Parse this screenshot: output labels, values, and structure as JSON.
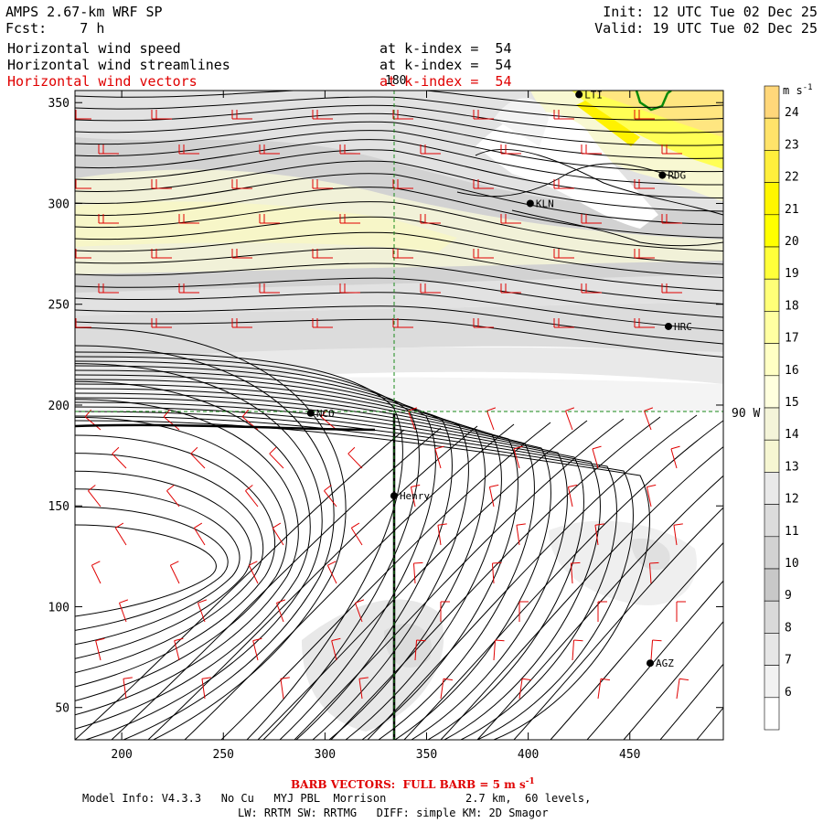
{
  "header": {
    "model": "AMPS 2.67-km WRF SP",
    "fcst": "Fcst:    7 h",
    "init": "Init: 12 UTC Tue 02 Dec 25",
    "valid": "Valid: 19 UTC Tue 02 Dec 25",
    "fields": [
      {
        "label": "Horizontal wind speed",
        "level": "at k-index =  54",
        "color": "#000000"
      },
      {
        "label": "Horizontal wind streamlines",
        "level": "at k-index =  54",
        "color": "#000000"
      },
      {
        "label": "Horizontal wind vectors",
        "level": "at k-index =  54",
        "color": "#e00000"
      }
    ]
  },
  "map": {
    "x_ticks": [
      "200",
      "250",
      "300",
      "350",
      "400",
      "450"
    ],
    "y_ticks": [
      "350",
      "300",
      "250",
      "200",
      "150",
      "100",
      "50"
    ],
    "x_range": [
      177,
      496
    ],
    "y_range": [
      34,
      356
    ],
    "meridian_label": "180",
    "parallel_label": "90 W",
    "stations": [
      {
        "name": "NCO",
        "x": 293,
        "y": 196
      },
      {
        "name": "Henry",
        "x": 334,
        "y": 155
      },
      {
        "name": "KLN",
        "x": 401,
        "y": 300
      },
      {
        "name": "RDG",
        "x": 466,
        "y": 314
      },
      {
        "name": "HRC",
        "x": 469,
        "y": 239
      },
      {
        "name": "AGZ",
        "x": 460,
        "y": 72
      },
      {
        "name": "LTI",
        "x": 425,
        "y": 354
      }
    ]
  },
  "colorbar": {
    "unit": "m s",
    "unit_exp": "-1",
    "levels": [
      {
        "v": "24",
        "c": "#ffd77a"
      },
      {
        "v": "23",
        "c": "#ffe36a"
      },
      {
        "v": "22",
        "c": "#ffef3c"
      },
      {
        "v": "21",
        "c": "#fff600"
      },
      {
        "v": "20",
        "c": "#ffff00"
      },
      {
        "v": "19",
        "c": "#ffff3a"
      },
      {
        "v": "18",
        "c": "#ffff78"
      },
      {
        "v": "17",
        "c": "#ffffa2"
      },
      {
        "v": "16",
        "c": "#ffffc4"
      },
      {
        "v": "15",
        "c": "#ffffde"
      },
      {
        "v": "14",
        "c": "#f4f4d9"
      },
      {
        "v": "13",
        "c": "#f6f6d2"
      },
      {
        "v": "12",
        "c": "#e9e9e9"
      },
      {
        "v": "11",
        "c": "#dcdcdc"
      },
      {
        "v": "10",
        "c": "#d2d2d2"
      },
      {
        "v": "9",
        "c": "#c8c8c8"
      },
      {
        "v": "8",
        "c": "#d9d9d9"
      },
      {
        "v": "7",
        "c": "#e6e6e6"
      },
      {
        "v": "6",
        "c": "#f2f2f2"
      },
      {
        "v": "",
        "c": "#ffffff"
      }
    ]
  },
  "footer": {
    "barb": "BARB VECTORS:  FULL BARB = 5 m s",
    "barb_exp": "-1",
    "model_info": "Model Info: V4.3.3   No Cu   MYJ PBL  Morrison            2.7 km,  60 levels,",
    "physics": "LW: RRTM SW: RRTMG   DIFF: simple KM: 2D Smagor"
  }
}
